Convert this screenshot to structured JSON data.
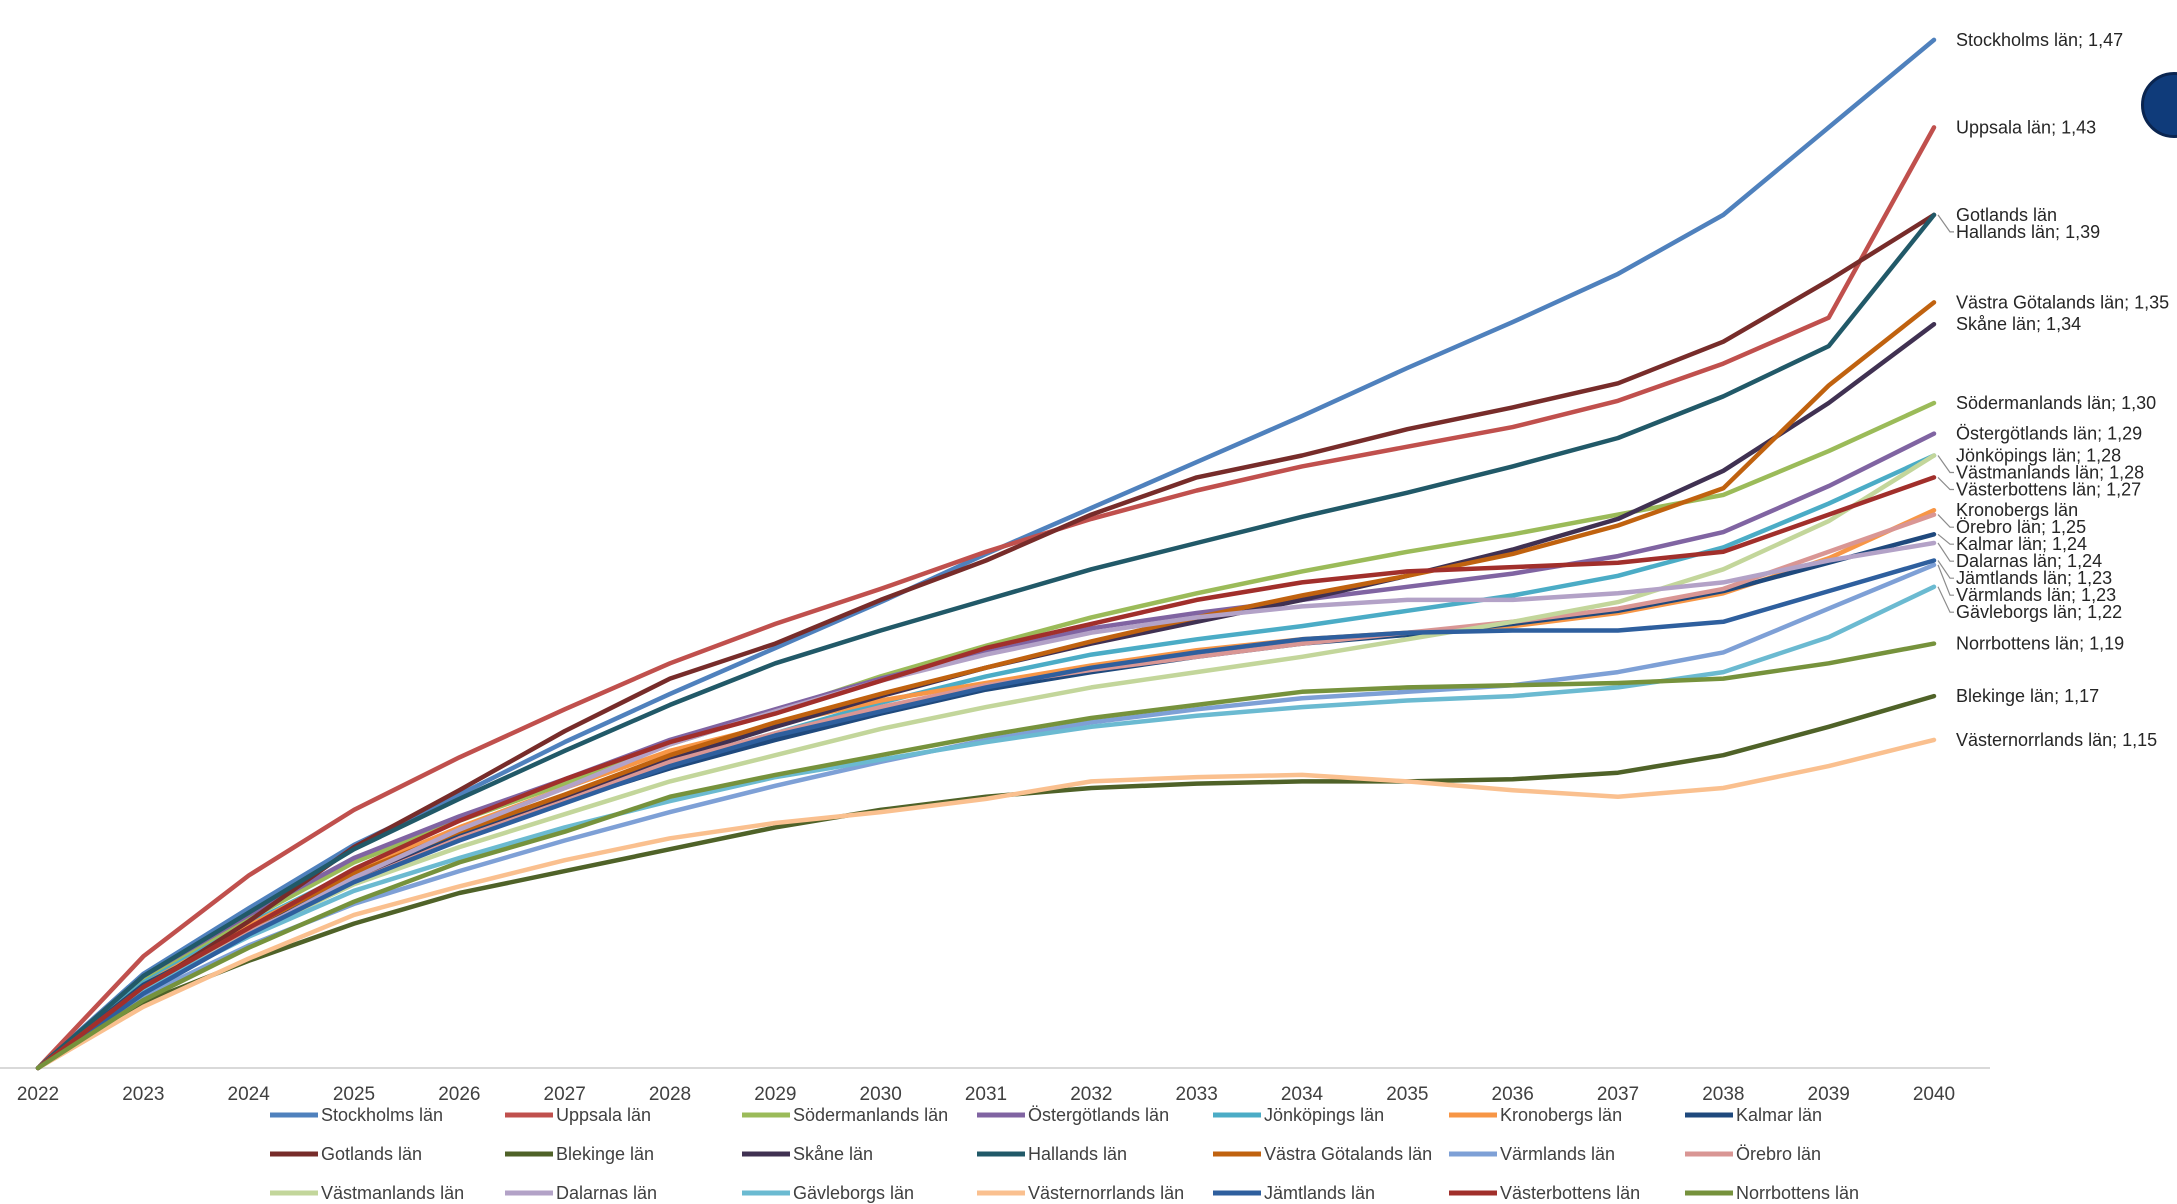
{
  "chart_data": {
    "type": "line",
    "title": "",
    "xlabel": "",
    "ylabel": "",
    "x": [
      "2022",
      "2023",
      "2024",
      "2025",
      "2026",
      "2027",
      "2028",
      "2029",
      "2030",
      "2031",
      "2032",
      "2033",
      "2034",
      "2035",
      "2036",
      "2037",
      "2038",
      "2039",
      "2040"
    ],
    "ylim": [
      1.0,
      1.48
    ],
    "grid": false,
    "legend_position": "bottom",
    "series": [
      {
        "name": "Stockholms län",
        "color": "#4f81bd",
        "end_label": "Stockholms län; 1,47",
        "values": [
          1.0,
          1.043,
          1.073,
          1.102,
          1.125,
          1.149,
          1.171,
          1.192,
          1.213,
          1.235,
          1.256,
          1.277,
          1.298,
          1.32,
          1.341,
          1.363,
          1.39,
          1.43,
          1.47
        ]
      },
      {
        "name": "Uppsala län",
        "color": "#c0504d",
        "end_label": "Uppsala län; 1,43",
        "values": [
          1.0,
          1.051,
          1.088,
          1.118,
          1.142,
          1.164,
          1.185,
          1.203,
          1.219,
          1.236,
          1.251,
          1.264,
          1.275,
          1.284,
          1.293,
          1.305,
          1.322,
          1.343,
          1.43
        ]
      },
      {
        "name": "Södermanlands län",
        "color": "#9bbb59",
        "end_label": "Södermanlands län; 1,30",
        "values": [
          1.0,
          1.04,
          1.068,
          1.094,
          1.113,
          1.13,
          1.148,
          1.163,
          1.179,
          1.193,
          1.206,
          1.217,
          1.227,
          1.236,
          1.244,
          1.253,
          1.262,
          1.282,
          1.304
        ]
      },
      {
        "name": "Östergötlands län",
        "color": "#8064a2",
        "end_label": "Östergötlands län; 1,29",
        "values": [
          1.0,
          1.042,
          1.07,
          1.096,
          1.115,
          1.132,
          1.15,
          1.164,
          1.178,
          1.19,
          1.201,
          1.208,
          1.214,
          1.22,
          1.226,
          1.234,
          1.245,
          1.266,
          1.29
        ]
      },
      {
        "name": "Jönköpings län",
        "color": "#4bacc6",
        "end_label": "Jönköpings län; 1,28",
        "values": [
          1.0,
          1.039,
          1.066,
          1.09,
          1.108,
          1.123,
          1.14,
          1.153,
          1.167,
          1.179,
          1.189,
          1.196,
          1.202,
          1.209,
          1.216,
          1.225,
          1.238,
          1.258,
          1.28
        ]
      },
      {
        "name": "Kronobergs län",
        "color": "#f79646",
        "end_label": "Kronobergs län",
        "values": [
          1.0,
          1.038,
          1.065,
          1.09,
          1.11,
          1.128,
          1.145,
          1.157,
          1.168,
          1.176,
          1.184,
          1.191,
          1.196,
          1.199,
          1.202,
          1.208,
          1.217,
          1.233,
          1.255
        ]
      },
      {
        "name": "Kalmar län",
        "color": "#1f497d",
        "end_label": "Kalmar län; 1,24",
        "values": [
          1.0,
          1.038,
          1.063,
          1.088,
          1.107,
          1.122,
          1.137,
          1.15,
          1.162,
          1.173,
          1.181,
          1.188,
          1.194,
          1.198,
          1.203,
          1.209,
          1.218,
          1.231,
          1.244
        ]
      },
      {
        "name": "Gotlands län",
        "color": "#772c2a",
        "end_label": "Gotlands län",
        "values": [
          1.0,
          1.036,
          1.067,
          1.101,
          1.127,
          1.154,
          1.178,
          1.194,
          1.214,
          1.232,
          1.253,
          1.27,
          1.28,
          1.292,
          1.302,
          1.313,
          1.332,
          1.36,
          1.39
        ]
      },
      {
        "name": "Blekinge län",
        "color": "#4f6228",
        "end_label": "Blekinge län; 1,17",
        "values": [
          1.0,
          1.03,
          1.049,
          1.066,
          1.08,
          1.09,
          1.1,
          1.11,
          1.118,
          1.124,
          1.128,
          1.13,
          1.131,
          1.131,
          1.132,
          1.135,
          1.143,
          1.156,
          1.17
        ]
      },
      {
        "name": "Skåne län",
        "color": "#403152",
        "end_label": "Skåne län; 1,34",
        "values": [
          1.0,
          1.037,
          1.062,
          1.086,
          1.105,
          1.123,
          1.141,
          1.156,
          1.17,
          1.183,
          1.194,
          1.204,
          1.214,
          1.225,
          1.237,
          1.251,
          1.273,
          1.304,
          1.34
        ]
      },
      {
        "name": "Hallands län",
        "color": "#215968",
        "end_label": "Hallands län; 1,39",
        "values": [
          1.0,
          1.042,
          1.071,
          1.1,
          1.123,
          1.145,
          1.166,
          1.185,
          1.2,
          1.214,
          1.228,
          1.24,
          1.252,
          1.263,
          1.275,
          1.288,
          1.307,
          1.33,
          1.39
        ]
      },
      {
        "name": "Västra Götalands län",
        "color": "#c0620f",
        "end_label": "Västra Götalands län; 1,35",
        "values": [
          1.0,
          1.037,
          1.064,
          1.089,
          1.108,
          1.125,
          1.143,
          1.158,
          1.171,
          1.183,
          1.195,
          1.206,
          1.216,
          1.225,
          1.235,
          1.248,
          1.265,
          1.312,
          1.35
        ]
      },
      {
        "name": "Värmlands län",
        "color": "#7ea0d6",
        "end_label": "Värmlands län; 1,23",
        "values": [
          1.0,
          1.033,
          1.056,
          1.075,
          1.09,
          1.104,
          1.117,
          1.129,
          1.14,
          1.15,
          1.158,
          1.164,
          1.169,
          1.172,
          1.175,
          1.181,
          1.19,
          1.21,
          1.23
        ]
      },
      {
        "name": "Örebro län",
        "color": "#d99694",
        "end_label": "Örebro län; 1,25",
        "values": [
          1.0,
          1.036,
          1.062,
          1.085,
          1.105,
          1.122,
          1.14,
          1.153,
          1.165,
          1.175,
          1.182,
          1.188,
          1.194,
          1.199,
          1.204,
          1.21,
          1.219,
          1.236,
          1.253
        ]
      },
      {
        "name": "Västmanlands län",
        "color": "#c3d69b",
        "end_label": "Västmanlands län; 1,28",
        "values": [
          1.0,
          1.036,
          1.061,
          1.084,
          1.101,
          1.116,
          1.131,
          1.143,
          1.155,
          1.165,
          1.174,
          1.181,
          1.188,
          1.196,
          1.204,
          1.213,
          1.228,
          1.25,
          1.28
        ]
      },
      {
        "name": "Dalarnas län",
        "color": "#b3a2c7",
        "end_label": "Dalarnas län; 1,24",
        "values": [
          1.0,
          1.035,
          1.061,
          1.087,
          1.109,
          1.128,
          1.148,
          1.163,
          1.177,
          1.189,
          1.199,
          1.206,
          1.211,
          1.214,
          1.214,
          1.217,
          1.222,
          1.232,
          1.24
        ]
      },
      {
        "name": "Gävleborgs län",
        "color": "#6bbad1",
        "end_label": "Gävleborgs län; 1,22",
        "values": [
          1.0,
          1.036,
          1.06,
          1.081,
          1.096,
          1.11,
          1.122,
          1.133,
          1.141,
          1.149,
          1.156,
          1.161,
          1.165,
          1.168,
          1.17,
          1.174,
          1.181,
          1.197,
          1.22
        ]
      },
      {
        "name": "Västernorrlands län",
        "color": "#fac08f",
        "end_label": "Västernorrlands län; 1,15",
        "values": [
          1.0,
          1.028,
          1.05,
          1.07,
          1.083,
          1.095,
          1.105,
          1.112,
          1.117,
          1.123,
          1.131,
          1.133,
          1.134,
          1.131,
          1.127,
          1.124,
          1.128,
          1.138,
          1.15
        ]
      },
      {
        "name": "Jämtlands län",
        "color": "#2e5f9e",
        "end_label": "Jämtlands län; 1,23",
        "values": [
          1.0,
          1.034,
          1.061,
          1.085,
          1.104,
          1.121,
          1.138,
          1.152,
          1.163,
          1.174,
          1.183,
          1.19,
          1.196,
          1.199,
          1.2,
          1.2,
          1.204,
          1.218,
          1.232
        ]
      },
      {
        "name": "Västerbottens län",
        "color": "#a12f2b",
        "end_label": "Västerbottens län; 1,27",
        "values": [
          1.0,
          1.037,
          1.064,
          1.091,
          1.113,
          1.132,
          1.149,
          1.162,
          1.177,
          1.192,
          1.203,
          1.214,
          1.222,
          1.227,
          1.229,
          1.231,
          1.236,
          1.253,
          1.27
        ]
      },
      {
        "name": "Norrbottens län",
        "color": "#76923c",
        "end_label": "Norrbottens län; 1,19",
        "values": [
          1.0,
          1.031,
          1.055,
          1.076,
          1.094,
          1.108,
          1.124,
          1.134,
          1.143,
          1.152,
          1.16,
          1.166,
          1.172,
          1.174,
          1.175,
          1.176,
          1.178,
          1.185,
          1.194
        ]
      }
    ]
  }
}
